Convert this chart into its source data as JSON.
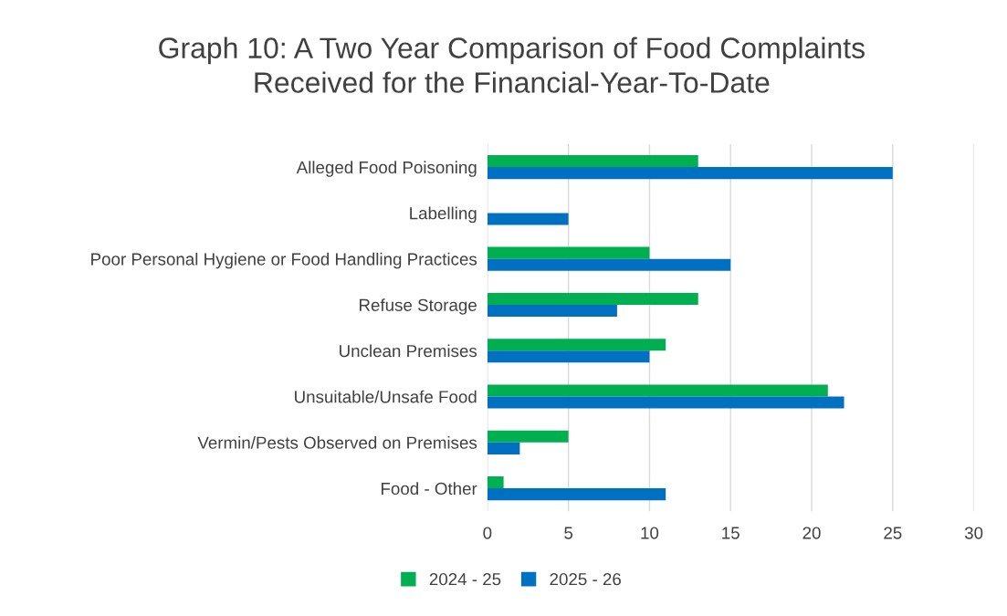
{
  "chart_data": {
    "type": "bar",
    "orientation": "horizontal",
    "title": "Graph 10: A Two Year Comparison of Food Complaints\nReceived for the Financial-Year-To-Date",
    "categories": [
      "Alleged Food Poisoning",
      "Labelling",
      "Poor Personal Hygiene or Food Handling Practices",
      "Refuse Storage",
      "Unclean Premises",
      "Unsuitable/Unsafe Food",
      "Vermin/Pests Observed on Premises",
      "Food - Other"
    ],
    "series": [
      {
        "name": "2024 - 25",
        "color": "#00b050",
        "values": [
          13,
          null,
          10,
          13,
          11,
          21,
          5,
          1
        ]
      },
      {
        "name": "2025 - 26",
        "color": "#0070c0",
        "values": [
          25,
          5,
          15,
          8,
          10,
          22,
          2,
          11
        ]
      }
    ],
    "xlim": [
      0,
      30
    ],
    "xticks": [
      0,
      5,
      10,
      15,
      20,
      25,
      30
    ],
    "grid": "x",
    "legend": "bottom"
  }
}
